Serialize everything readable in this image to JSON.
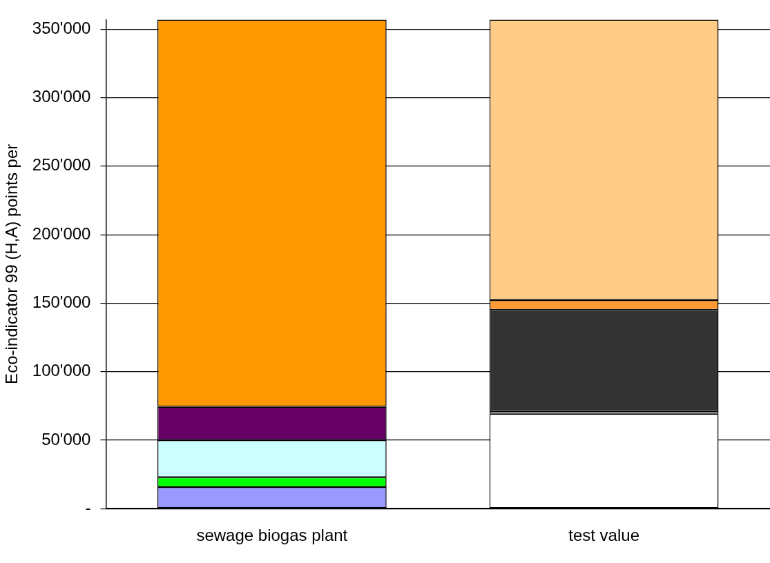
{
  "chart_data": {
    "type": "bar",
    "stacked": true,
    "ylabel": "Eco-indicator 99 (H,A) points per",
    "categories": [
      "sewage biogas plant",
      "test value"
    ],
    "series": [
      {
        "color": "#9999ff",
        "values": [
          15700,
          null
        ]
      },
      {
        "color": "#00ff00",
        "values": [
          7200,
          null
        ]
      },
      {
        "color": "#ccffff",
        "values": [
          27100,
          null
        ]
      },
      {
        "color": "#660066",
        "values": [
          24400,
          null
        ]
      },
      {
        "color": "#ff9900",
        "values": [
          282600,
          null
        ]
      },
      {
        "color": "#ffffff",
        "values": [
          null,
          69200
        ]
      },
      {
        "color": "#999999",
        "values": [
          null,
          2000
        ]
      },
      {
        "color": "#333333",
        "values": [
          null,
          73800
        ]
      },
      {
        "color": "#ff9933",
        "values": [
          null,
          7200
        ]
      },
      {
        "color": "#ffcc88",
        "values": [
          null,
          204800
        ]
      }
    ],
    "ylim": [
      0,
      357000
    ],
    "yticks": [
      {
        "value": 0,
        "label": "-"
      },
      {
        "value": 50000,
        "label": "50'000"
      },
      {
        "value": 100000,
        "label": "100'000"
      },
      {
        "value": 150000,
        "label": "150'000"
      },
      {
        "value": 200000,
        "label": "200'000"
      },
      {
        "value": 250000,
        "label": "250'000"
      },
      {
        "value": 300000,
        "label": "300'000"
      },
      {
        "value": 350000,
        "label": "350'000"
      }
    ],
    "grid": "y",
    "legend": false
  }
}
